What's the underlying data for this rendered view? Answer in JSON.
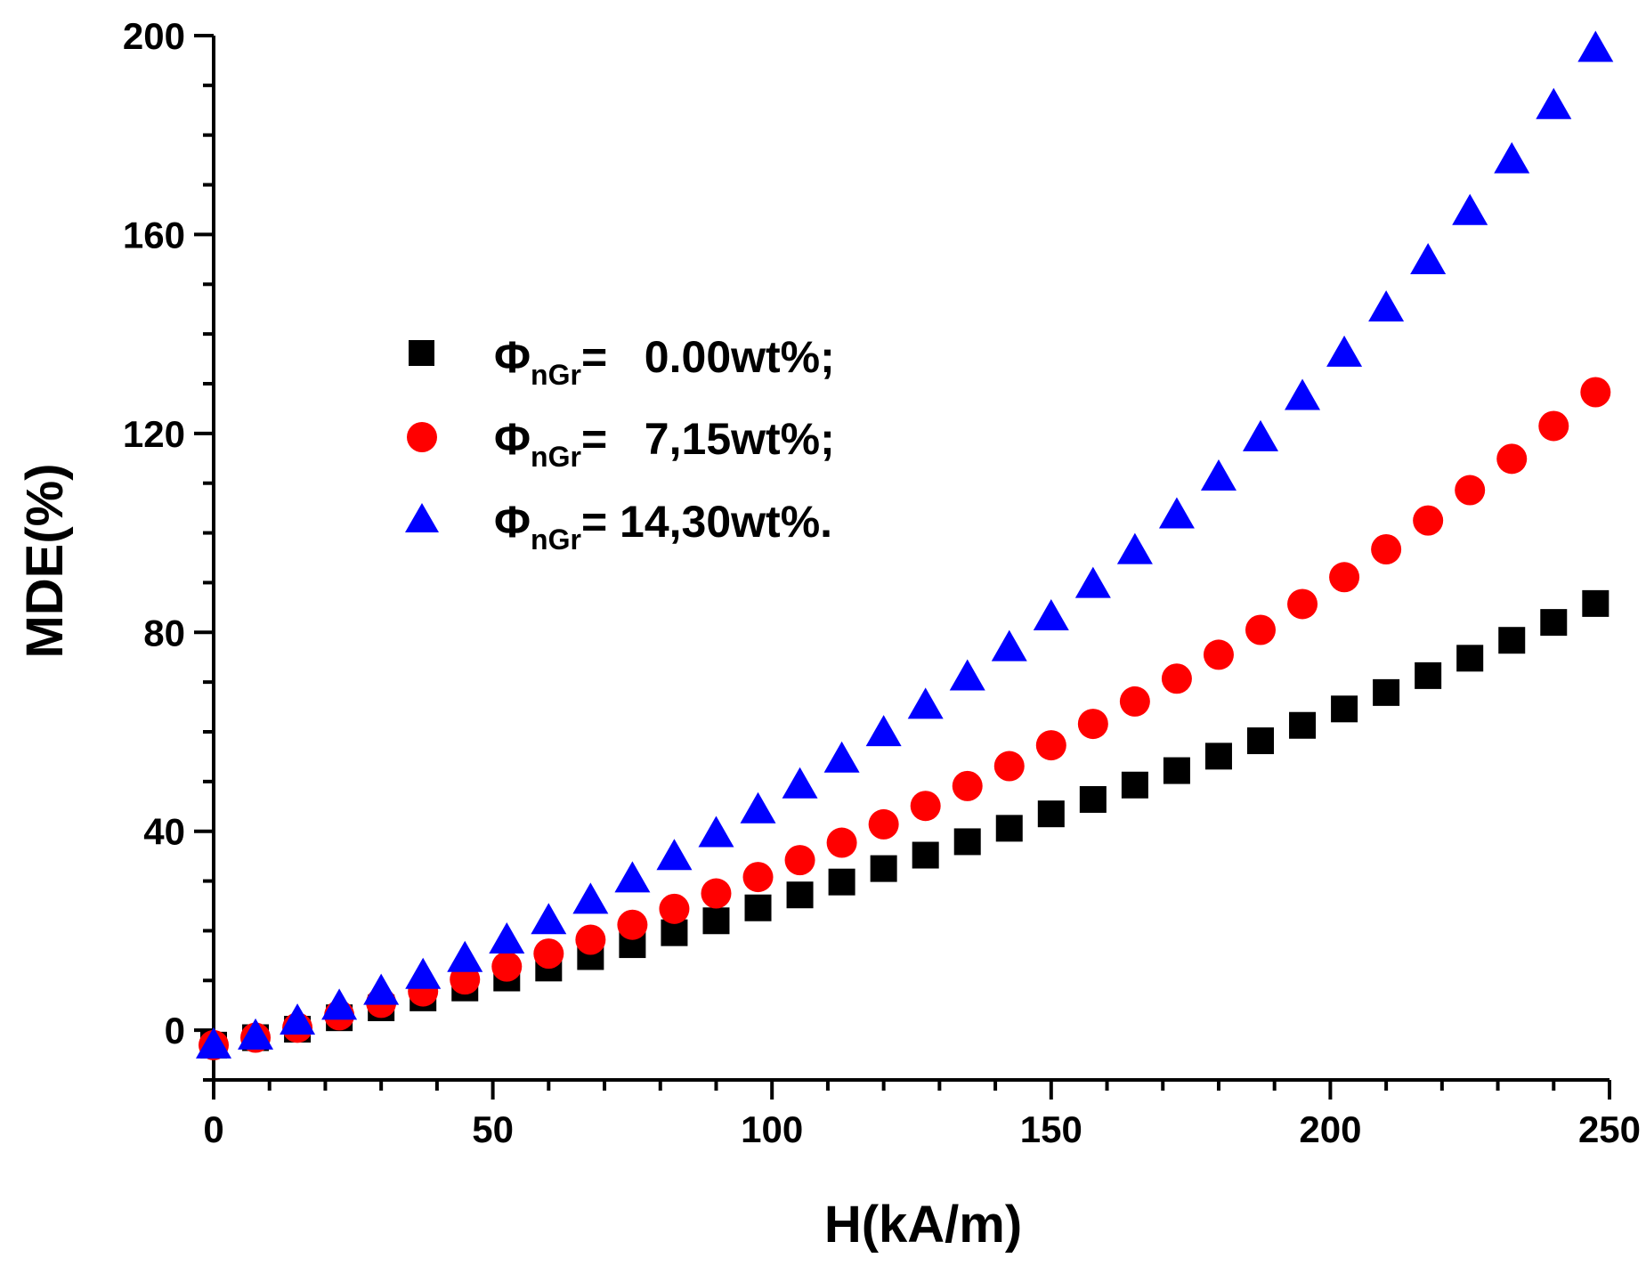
{
  "chart_data": {
    "type": "scatter",
    "title": "",
    "xlabel": "H(kA/m)",
    "ylabel": "MDE(%)",
    "xlim": [
      0,
      250
    ],
    "ylim": [
      -10,
      200
    ],
    "xticks": [
      0,
      50,
      100,
      150,
      200,
      250
    ],
    "yticks": [
      0,
      40,
      80,
      120,
      160,
      200
    ],
    "grid": false,
    "legend_position": "upper-left",
    "x": [
      0,
      7.5,
      15,
      22.5,
      30,
      37.5,
      45,
      52.5,
      60,
      67.5,
      75,
      82.5,
      90,
      97.5,
      105,
      112.5,
      120,
      127.5,
      135,
      142.5,
      150,
      157.5,
      165,
      172.5,
      180,
      187.5,
      195,
      202.5,
      210,
      217.5,
      225,
      232.5,
      240,
      247.5
    ],
    "series": [
      {
        "name": "0.00wt%;",
        "legend_prefix": "Φ",
        "legend_sub": "nGr",
        "legend_value": "=   0.00wt%;",
        "marker": "square",
        "color": "#000000",
        "values": [
          -3,
          -1.5,
          0.2,
          2.5,
          4.5,
          6.5,
          8.5,
          10.5,
          12.5,
          14.8,
          17.2,
          19.6,
          22,
          24.6,
          27.2,
          29.8,
          32.5,
          35.2,
          37.9,
          40.6,
          43.5,
          46.4,
          49.3,
          52.2,
          55.1,
          58.2,
          61.3,
          64.6,
          67.9,
          71.3,
          74.8,
          78.4,
          82,
          85.8
        ]
      },
      {
        "name": "7,15wt%;",
        "legend_prefix": "Φ",
        "legend_sub": "nGr",
        "legend_value": "=   7,15wt%;",
        "marker": "circle",
        "color": "#ff0000",
        "values": [
          -3,
          -1.5,
          0.5,
          3,
          5.5,
          7.8,
          10.2,
          12.8,
          15.4,
          18.2,
          21.2,
          24.4,
          27.5,
          30.8,
          34.2,
          37.7,
          41.4,
          45.1,
          49.1,
          53.1,
          57.3,
          61.6,
          66.1,
          70.7,
          75.5,
          80.5,
          85.7,
          91.1,
          96.7,
          102.5,
          108.6,
          114.9,
          121.5,
          128.3
        ]
      },
      {
        "name": "14,30wt%.",
        "legend_prefix": "Φ",
        "legend_sub": "nGr",
        "legend_value": "= 14,30wt%.",
        "marker": "triangle",
        "color": "#0000ff",
        "values": [
          -3,
          -1.2,
          1.8,
          4.8,
          7.8,
          11,
          14.4,
          18.1,
          22,
          26.1,
          30.4,
          34.9,
          39.5,
          44.3,
          49.3,
          54.5,
          59.8,
          65.3,
          71,
          76.9,
          83.1,
          89.6,
          96.4,
          103.6,
          111.2,
          119.1,
          127.4,
          136.1,
          145.2,
          154.7,
          164.6,
          175,
          185.9,
          197.4
        ]
      }
    ]
  }
}
